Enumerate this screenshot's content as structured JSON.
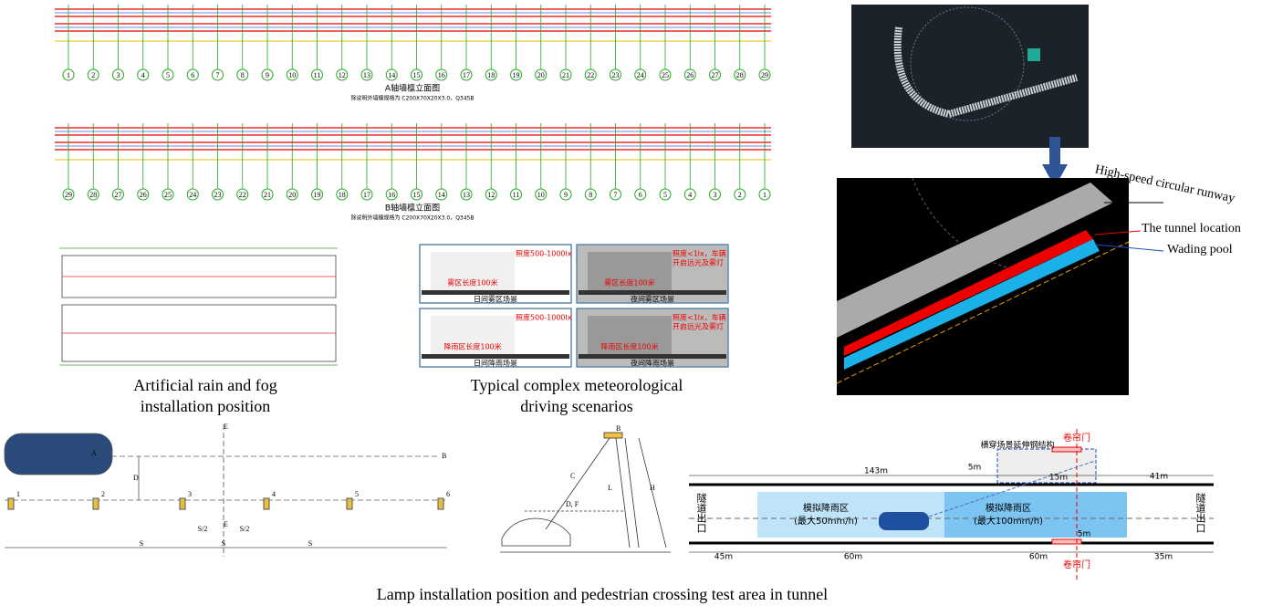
{
  "elevation_a": {
    "title": "A轴墙檩立面图",
    "note": "除说明外墙檩规格为 C200X70X20X3.0，Q345B",
    "axes": [
      "1",
      "2",
      "3",
      "4",
      "5",
      "6",
      "7",
      "8",
      "9",
      "10",
      "11",
      "12",
      "13",
      "14",
      "15",
      "16",
      "17",
      "18",
      "19",
      "20",
      "21",
      "22",
      "23",
      "24",
      "25",
      "26",
      "27",
      "28",
      "29"
    ]
  },
  "elevation_b": {
    "title": "B轴墙檩立面图",
    "note": "除说明外墙檩规格为 C200X70X20X3.0，Q345B",
    "axes": [
      "29",
      "28",
      "27",
      "26",
      "25",
      "24",
      "23",
      "22",
      "21",
      "20",
      "19",
      "18",
      "17",
      "16",
      "15",
      "14",
      "13",
      "12",
      "11",
      "10",
      "9",
      "8",
      "7",
      "6",
      "5",
      "4",
      "3",
      "2",
      "1"
    ]
  },
  "captions": {
    "rain_fog": [
      "Artificial rain and fog",
      "installation position"
    ],
    "scenarios": [
      "Typical complex meteorological",
      "driving scenarios"
    ],
    "tunnel": "Lamp installation position and pedestrian crossing test area in tunnel"
  },
  "scenarios": [
    {
      "zone": "雾区长度100米",
      "light": [
        "照度500-1000lx"
      ],
      "caption": "日间雾区场景"
    },
    {
      "zone": "雾区长度100米",
      "light": [
        "照度<1lx，车辆",
        "开启远光及雾灯"
      ],
      "caption": "夜间雾区场景"
    },
    {
      "zone": "降雨区长度100米",
      "light": [
        "照度500-1000lx"
      ],
      "caption": "日间降雨场景"
    },
    {
      "zone": "降雨区长度100米",
      "light": [
        "照度<1lx，车辆",
        "开启远光及雾灯"
      ],
      "caption": "夜间降雨场景"
    }
  ],
  "runway": {
    "labels": [
      "High-speed circular runway",
      "The tunnel location",
      "Wading pool"
    ]
  },
  "lamp_layout": {
    "lamps": [
      "1",
      "2",
      "3",
      "4",
      "5",
      "6"
    ],
    "letters": [
      "A",
      "B",
      "E",
      "D",
      "E"
    ],
    "spacing": [
      "S/2",
      "S/2",
      "S",
      "S",
      "S"
    ]
  },
  "geometry": {
    "labels": [
      "H",
      "L",
      "C",
      "D, F",
      "B"
    ]
  },
  "tunnel": {
    "dims_top": [
      "143m",
      "5m",
      "15m",
      "41m"
    ],
    "dims_bottom": [
      "45m",
      "60m",
      "60m",
      "35m",
      "5m"
    ],
    "door": [
      "卷帘门",
      "卷帘门"
    ],
    "steel": "横穿场景延伸钢结构",
    "zones": [
      [
        "模拟降雨区",
        "(最大50mm/h)"
      ],
      [
        "模拟降雨区",
        "(最大100mm/h)"
      ]
    ],
    "exits": [
      "隧道出口",
      "隧道出口"
    ]
  }
}
